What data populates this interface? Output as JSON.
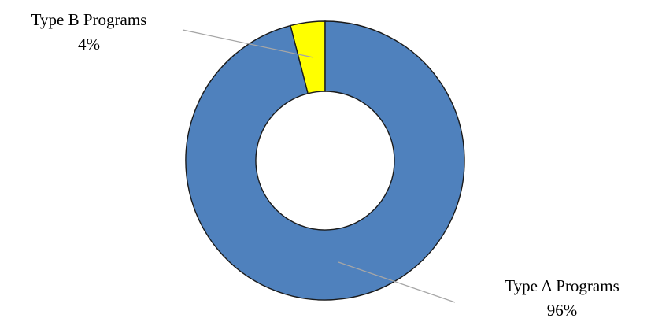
{
  "chart_data": {
    "type": "pie",
    "donut": true,
    "title": "",
    "slices": [
      {
        "label": "Type B Programs",
        "value": 4,
        "value_label": "4%",
        "color": "#ffff00"
      },
      {
        "label": "Type A Programs",
        "value": 96,
        "value_label": "96%",
        "color": "#4f81bd"
      }
    ],
    "start": "12 o'clock",
    "direction": "counter-clockwise for Type B, remainder clockwise",
    "legend": "none",
    "labels_placement": "outside with leader lines"
  }
}
